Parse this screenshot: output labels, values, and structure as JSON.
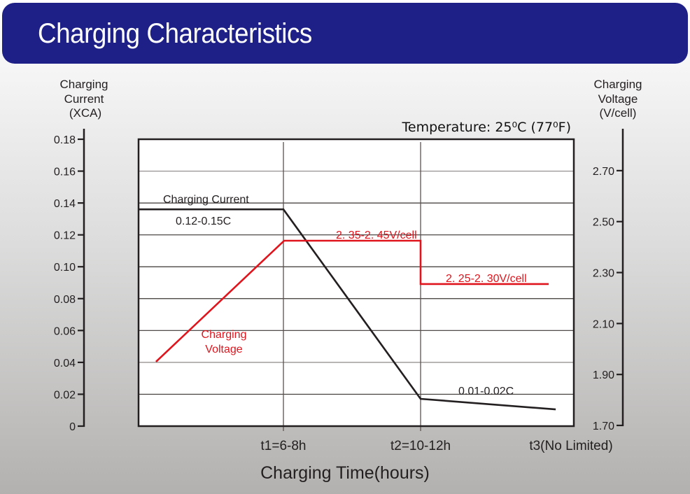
{
  "header": {
    "title": "Charging Characteristics"
  },
  "chart_data": {
    "type": "line",
    "title": "Charging Characteristics",
    "subtitle": "Temperature: 25⁰C (77⁰F)",
    "xlabel": "Charging Time(hours)",
    "x_categories": [
      {
        "label": "t1=6-8h",
        "t": 1
      },
      {
        "label": "t2=10-12h",
        "t": 2
      },
      {
        "label": "t3(No Limited)",
        "t": 3
      }
    ],
    "xlim": [
      -0.056,
      3.117
    ],
    "y_left": {
      "label_lines": [
        "Charging",
        "Current",
        "(XCA)"
      ],
      "ticks": [
        "0",
        "0.02",
        "0.04",
        "0.06",
        "0.08",
        "0.10",
        "0.12",
        "0.14",
        "0.16",
        "0.18"
      ],
      "tick_values": [
        0,
        0.02,
        0.04,
        0.06,
        0.08,
        0.1,
        0.12,
        0.14,
        0.16,
        0.18
      ],
      "ylim": [
        0,
        0.18
      ]
    },
    "y_right": {
      "label_lines": [
        "Charging",
        "Voltage",
        "(V/cell)"
      ],
      "ticks": [
        "1.70",
        "1.90",
        "2.10",
        "2.30",
        "2.50",
        "2.70"
      ],
      "tick_values": [
        1.7,
        1.9,
        2.1,
        2.3,
        2.5,
        2.7
      ],
      "ylim": [
        1.7,
        2.826
      ]
    },
    "grid": true,
    "series": [
      {
        "name": "Charging Current",
        "axis": "left",
        "color": "#231f20",
        "points": [
          [
            -0.056,
            0.136
          ],
          [
            1,
            0.136
          ],
          [
            2,
            0.0171
          ],
          [
            2.985,
            0.0105
          ]
        ]
      },
      {
        "name": "Charging Voltage",
        "axis": "right",
        "color": "#e0141c",
        "points": [
          [
            0.071,
            1.95
          ],
          [
            1.005,
            2.425
          ],
          [
            2,
            2.425
          ],
          [
            2,
            2.255
          ],
          [
            2.934,
            2.255
          ]
        ]
      }
    ],
    "annotations": [
      {
        "text": "Charging Current",
        "color": "black",
        "series": "current"
      },
      {
        "text": "0.12-0.15C",
        "color": "black"
      },
      {
        "text": "2. 35-2. 45V/cell",
        "color": "red"
      },
      {
        "text": "2. 25-2. 30V/cell",
        "color": "red"
      },
      {
        "text": "Charging",
        "color": "red"
      },
      {
        "text": "Voltage",
        "color": "red"
      },
      {
        "text": "0.01-0.02C",
        "color": "black"
      }
    ]
  }
}
